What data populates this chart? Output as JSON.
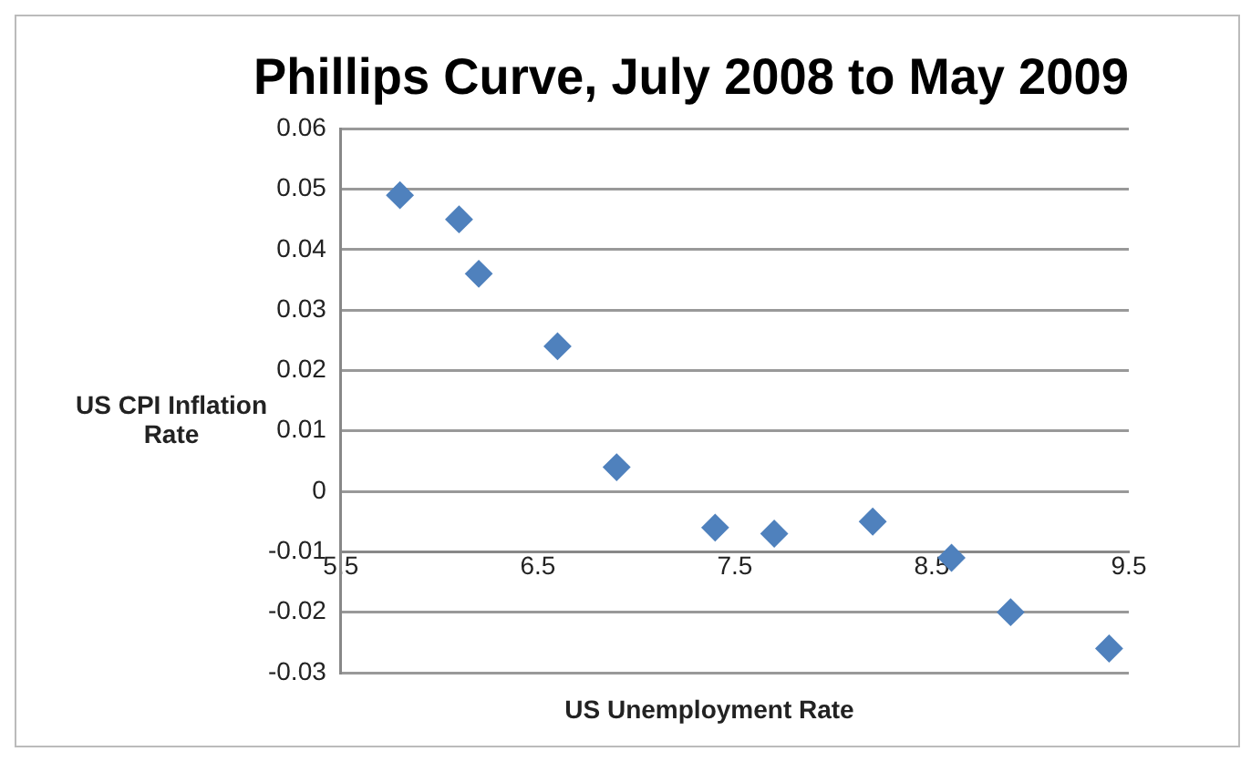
{
  "chart_data": {
    "type": "scatter",
    "title": "Phillips Curve, July 2008 to May 2009",
    "xlabel": "US Unemployment Rate",
    "ylabel": "US CPI Inflation Rate",
    "series": [
      {
        "color": "#4f81bd",
        "x": [
          5.8,
          6.1,
          6.2,
          6.6,
          6.9,
          7.4,
          7.7,
          8.2,
          8.6,
          8.9,
          9.4
        ],
        "values": [
          0.049,
          0.045,
          0.036,
          0.024,
          0.004,
          -0.006,
          -0.007,
          -0.005,
          -0.011,
          -0.02,
          -0.026
        ]
      }
    ],
    "xlim": [
      5.5,
      9.5
    ],
    "xticks": [
      5.5,
      6.5,
      7.5,
      8.5,
      9.5
    ],
    "ylim": [
      -0.03,
      0.06
    ],
    "yticks": [
      -0.03,
      -0.02,
      -0.01,
      0,
      0.01,
      0.02,
      0.03,
      0.04,
      0.05,
      0.06
    ],
    "grid": "y",
    "legend": false,
    "marker": "diamond"
  }
}
